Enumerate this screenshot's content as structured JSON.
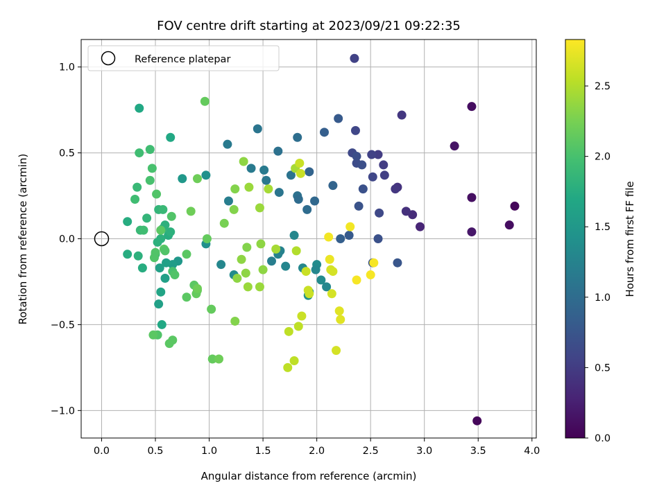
{
  "chart_data": {
    "type": "scatter",
    "title": "FOV centre drift starting at 2023/09/21 09:22:35",
    "xlabel": "Angular distance from reference (arcmin)",
    "ylabel": "Rotation from reference (arcmin)",
    "colorbar_label": "Hours from first FF file",
    "xlim": [
      -0.19,
      4.04
    ],
    "ylim": [
      -1.16,
      1.16
    ],
    "clim": [
      0.0,
      2.83
    ],
    "colormap": "viridis",
    "grid": true,
    "legend_placement": "top-left",
    "x_ticks": [
      "0.0",
      "0.5",
      "1.0",
      "1.5",
      "2.0",
      "2.5",
      "3.0",
      "3.5",
      "4.0"
    ],
    "y_ticks": [
      "−1.0",
      "−0.5",
      "0.0",
      "0.5",
      "1.0"
    ],
    "cbar_ticks": [
      "0.0",
      "0.5",
      "1.0",
      "1.5",
      "2.0",
      "2.5"
    ],
    "reference": {
      "label": "Reference platepar",
      "x": 0.0,
      "y": 0.0
    },
    "points": [
      [
        3.49,
        -1.06,
        0.05
      ],
      [
        3.84,
        0.19,
        0.05
      ],
      [
        3.79,
        0.08,
        0.1
      ],
      [
        3.44,
        0.77,
        0.1
      ],
      [
        3.44,
        0.24,
        0.12
      ],
      [
        3.28,
        0.54,
        0.15
      ],
      [
        3.44,
        0.04,
        0.18
      ],
      [
        2.96,
        0.07,
        0.3
      ],
      [
        2.89,
        0.14,
        0.35
      ],
      [
        2.83,
        0.16,
        0.4
      ],
      [
        2.75,
        0.3,
        0.42
      ],
      [
        2.73,
        0.29,
        0.45
      ],
      [
        2.79,
        0.72,
        0.45
      ],
      [
        2.62,
        0.43,
        0.5
      ],
      [
        2.63,
        0.37,
        0.52
      ],
      [
        2.57,
        0.49,
        0.5
      ],
      [
        2.51,
        0.49,
        0.55
      ],
      [
        2.52,
        0.36,
        0.6
      ],
      [
        2.58,
        0.15,
        0.62
      ],
      [
        2.57,
        0.0,
        0.7
      ],
      [
        2.52,
        -0.14,
        0.72
      ],
      [
        2.75,
        -0.14,
        0.75
      ],
      [
        2.35,
        1.05,
        0.55
      ],
      [
        2.36,
        0.63,
        0.6
      ],
      [
        2.33,
        0.5,
        0.62
      ],
      [
        2.37,
        0.44,
        0.65
      ],
      [
        2.37,
        0.48,
        0.68
      ],
      [
        2.42,
        0.43,
        0.68
      ],
      [
        2.43,
        0.29,
        0.7
      ],
      [
        2.39,
        0.19,
        0.72
      ],
      [
        2.3,
        0.02,
        0.8
      ],
      [
        2.22,
        0.0,
        0.85
      ],
      [
        2.2,
        0.7,
        0.8
      ],
      [
        2.07,
        0.62,
        0.85
      ],
      [
        2.15,
        0.31,
        0.9
      ],
      [
        1.98,
        0.22,
        0.95
      ],
      [
        1.93,
        0.39,
        0.9
      ],
      [
        1.91,
        0.17,
        1.0
      ],
      [
        1.82,
        0.25,
        1.05
      ],
      [
        1.83,
        0.23,
        1.0
      ],
      [
        1.82,
        0.59,
        1.02
      ],
      [
        1.76,
        0.37,
        1.08
      ],
      [
        1.64,
        0.51,
        1.05
      ],
      [
        1.65,
        0.27,
        1.1
      ],
      [
        1.53,
        0.34,
        1.12
      ],
      [
        1.51,
        0.4,
        1.15
      ],
      [
        1.45,
        0.64,
        1.1
      ],
      [
        1.39,
        0.41,
        1.15
      ],
      [
        1.17,
        0.55,
        1.15
      ],
      [
        1.18,
        0.22,
        1.2
      ],
      [
        1.79,
        0.02,
        1.3
      ],
      [
        1.66,
        -0.07,
        1.25
      ],
      [
        1.64,
        -0.09,
        1.25
      ],
      [
        1.58,
        -0.13,
        1.2
      ],
      [
        1.71,
        -0.16,
        1.28
      ],
      [
        1.87,
        -0.17,
        1.3
      ],
      [
        2.0,
        -0.15,
        1.35
      ],
      [
        1.99,
        -0.18,
        1.3
      ],
      [
        2.04,
        -0.24,
        1.35
      ],
      [
        2.09,
        -0.28,
        1.3
      ],
      [
        1.93,
        -0.31,
        1.45
      ],
      [
        1.92,
        -0.33,
        1.4
      ],
      [
        1.11,
        -0.15,
        1.3
      ],
      [
        1.23,
        -0.21,
        1.35
      ],
      [
        0.97,
        -0.03,
        1.4
      ],
      [
        0.97,
        0.37,
        1.4
      ],
      [
        0.75,
        0.35,
        1.5
      ],
      [
        0.71,
        -0.13,
        1.5
      ],
      [
        0.66,
        -0.15,
        1.55
      ],
      [
        0.6,
        -0.14,
        1.6
      ],
      [
        0.54,
        -0.17,
        1.6
      ],
      [
        0.59,
        -0.23,
        1.6
      ],
      [
        0.55,
        -0.31,
        1.65
      ],
      [
        0.53,
        -0.38,
        1.6
      ],
      [
        0.56,
        -0.5,
        1.7
      ],
      [
        0.64,
        0.59,
        1.7
      ],
      [
        0.35,
        0.76,
        1.7
      ],
      [
        0.24,
        0.1,
        1.75
      ],
      [
        0.24,
        -0.09,
        1.75
      ],
      [
        0.34,
        -0.1,
        1.8
      ],
      [
        0.38,
        -0.17,
        1.75
      ],
      [
        0.5,
        -0.09,
        1.85
      ],
      [
        0.52,
        -0.02,
        1.8
      ],
      [
        0.55,
        0.0,
        1.8
      ],
      [
        0.62,
        0.02,
        1.75
      ],
      [
        0.64,
        0.04,
        1.8
      ],
      [
        0.57,
        0.06,
        1.85
      ],
      [
        0.59,
        0.08,
        1.8
      ],
      [
        0.53,
        0.17,
        1.85
      ],
      [
        0.57,
        0.17,
        1.9
      ],
      [
        0.42,
        0.12,
        1.85
      ],
      [
        0.36,
        0.05,
        1.9
      ],
      [
        0.39,
        0.05,
        1.95
      ],
      [
        0.33,
        0.3,
        1.9
      ],
      [
        0.31,
        0.23,
        1.95
      ],
      [
        0.35,
        0.5,
        1.95
      ],
      [
        0.45,
        0.52,
        1.95
      ],
      [
        0.45,
        0.34,
        2.0
      ],
      [
        0.47,
        0.41,
        2.0
      ],
      [
        0.51,
        0.26,
        2.05
      ],
      [
        0.65,
        0.13,
        2.05
      ],
      [
        0.55,
        0.05,
        2.1
      ],
      [
        0.58,
        -0.06,
        2.1
      ],
      [
        0.59,
        -0.07,
        2.05
      ],
      [
        0.5,
        -0.08,
        2.05
      ],
      [
        0.49,
        -0.11,
        2.05
      ],
      [
        0.66,
        -0.19,
        2.0
      ],
      [
        0.68,
        -0.21,
        2.05
      ],
      [
        0.79,
        -0.09,
        2.1
      ],
      [
        0.86,
        -0.27,
        2.1
      ],
      [
        0.89,
        -0.3,
        2.15
      ],
      [
        0.88,
        -0.32,
        2.15
      ],
      [
        0.89,
        -0.29,
        2.2
      ],
      [
        0.79,
        -0.34,
        2.1
      ],
      [
        0.66,
        -0.59,
        2.1
      ],
      [
        0.63,
        -0.61,
        2.1
      ],
      [
        0.52,
        -0.56,
        2.05
      ],
      [
        0.48,
        -0.56,
        2.1
      ],
      [
        0.96,
        0.8,
        2.15
      ],
      [
        0.98,
        0.0,
        2.15
      ],
      [
        0.83,
        0.16,
        2.2
      ],
      [
        0.89,
        0.35,
        2.2
      ],
      [
        1.02,
        -0.41,
        2.15
      ],
      [
        1.03,
        -0.7,
        2.15
      ],
      [
        1.09,
        -0.7,
        2.2
      ],
      [
        1.14,
        0.09,
        2.25
      ],
      [
        1.23,
        0.17,
        2.3
      ],
      [
        1.24,
        0.29,
        2.3
      ],
      [
        1.24,
        -0.48,
        2.3
      ],
      [
        1.26,
        -0.23,
        2.35
      ],
      [
        1.3,
        -0.12,
        2.35
      ],
      [
        1.34,
        -0.2,
        2.35
      ],
      [
        1.35,
        -0.05,
        2.3
      ],
      [
        1.36,
        -0.28,
        2.4
      ],
      [
        1.32,
        0.45,
        2.35
      ],
      [
        1.37,
        0.3,
        2.4
      ],
      [
        1.47,
        0.18,
        2.4
      ],
      [
        1.48,
        -0.03,
        2.35
      ],
      [
        1.5,
        -0.18,
        2.35
      ],
      [
        1.47,
        -0.28,
        2.4
      ],
      [
        1.55,
        0.29,
        2.45
      ],
      [
        1.62,
        -0.06,
        2.45
      ],
      [
        1.8,
        0.41,
        2.45
      ],
      [
        1.81,
        -0.07,
        2.5
      ],
      [
        1.79,
        -0.71,
        2.55
      ],
      [
        1.74,
        -0.54,
        2.55
      ],
      [
        1.73,
        -0.75,
        2.55
      ],
      [
        1.83,
        -0.51,
        2.55
      ],
      [
        1.86,
        -0.45,
        2.6
      ],
      [
        1.84,
        0.44,
        2.6
      ],
      [
        1.85,
        0.38,
        2.6
      ],
      [
        1.9,
        -0.19,
        2.6
      ],
      [
        1.92,
        -0.3,
        2.6
      ],
      [
        1.93,
        -0.32,
        2.6
      ],
      [
        2.13,
        -0.18,
        2.65
      ],
      [
        2.15,
        -0.19,
        2.65
      ],
      [
        2.14,
        -0.32,
        2.65
      ],
      [
        2.18,
        -0.65,
        2.65
      ],
      [
        2.21,
        -0.42,
        2.7
      ],
      [
        2.22,
        -0.47,
        2.7
      ],
      [
        2.12,
        -0.12,
        2.75
      ],
      [
        2.11,
        0.01,
        2.78
      ],
      [
        2.31,
        0.07,
        2.78
      ],
      [
        2.37,
        -0.24,
        2.8
      ],
      [
        2.53,
        -0.14,
        2.8
      ],
      [
        2.5,
        -0.21,
        2.8
      ]
    ]
  }
}
